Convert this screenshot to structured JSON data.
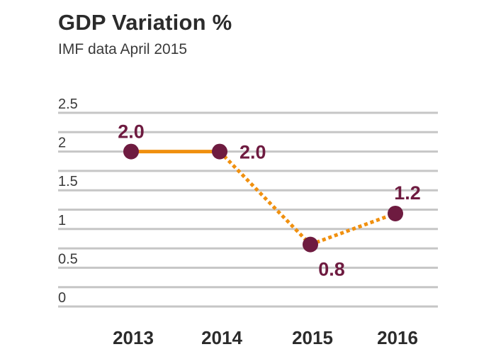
{
  "header": {
    "title": "GDP Variation %",
    "subtitle": "IMF data April 2015"
  },
  "colors": {
    "point": "#6e1b40",
    "line": "#f0900f",
    "grid": "#c6c6c6",
    "label": "#6e1b40"
  },
  "chart_data": {
    "type": "line",
    "title": "GDP Variation %",
    "subtitle": "IMF data April 2015",
    "categories": [
      "2013",
      "2014",
      "2015",
      "2016"
    ],
    "values": [
      2.0,
      2.0,
      0.8,
      1.2
    ],
    "data_labels": [
      "2.0",
      "2.0",
      "0.8",
      "1.2"
    ],
    "segment_styles": [
      "solid",
      "dotted",
      "dotted"
    ],
    "yticks": [
      "0",
      "0.5",
      "1",
      "1.5",
      "2",
      "2.5"
    ],
    "ylim": [
      0,
      2.5
    ],
    "grid": true,
    "legend": "none"
  }
}
